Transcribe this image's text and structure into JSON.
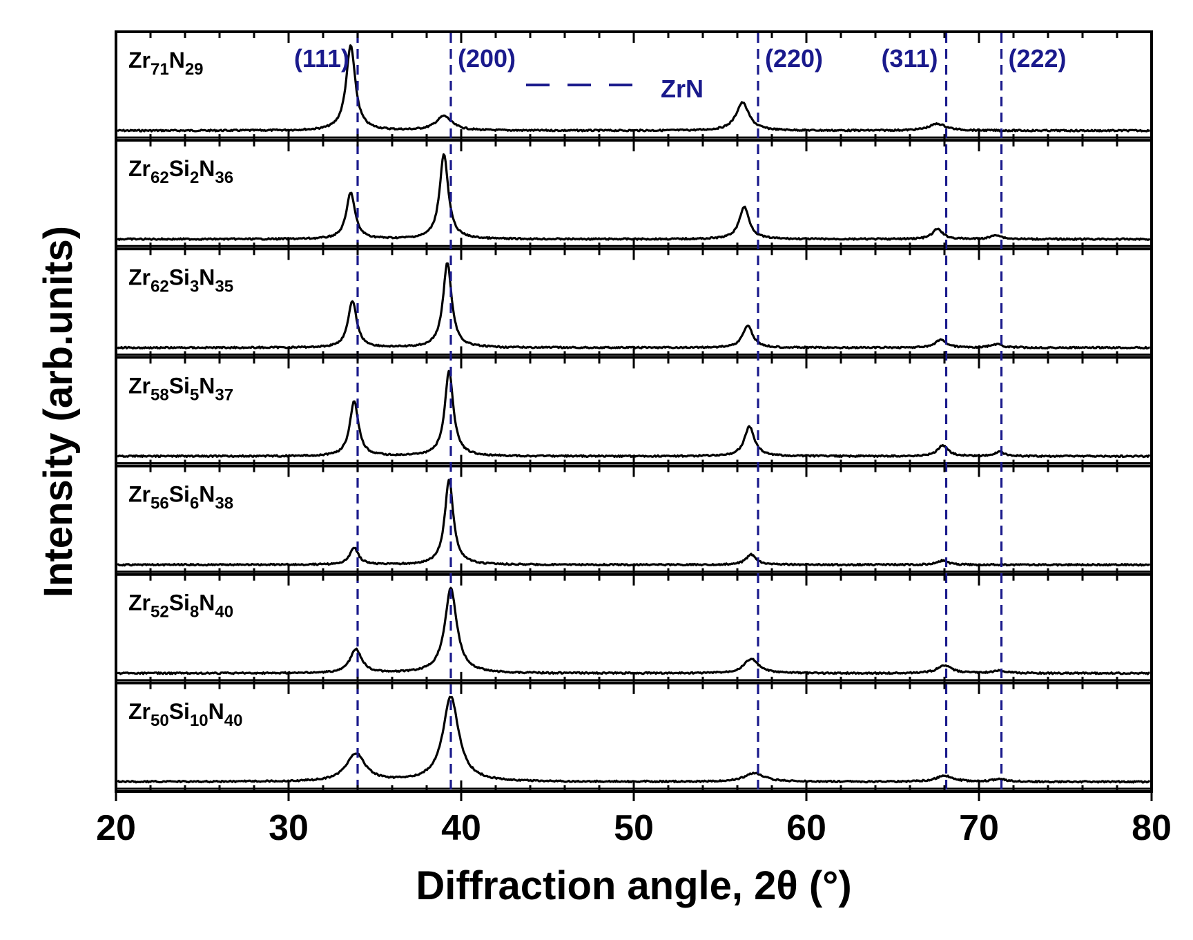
{
  "chart_data": {
    "type": "line",
    "title": "",
    "xlabel": "Diffraction angle, 2θ (°)",
    "ylabel": "Intensity (arb.units)",
    "xlim": [
      20,
      80
    ],
    "x_ticks": [
      20,
      30,
      40,
      50,
      60,
      70,
      80
    ],
    "x_minor_step": 2,
    "stacked": true,
    "reference": {
      "phase_label": "ZrN",
      "color": "#1a1a8c",
      "lines": [
        {
          "hkl": "(111)",
          "angle": 34.0
        },
        {
          "hkl": "(200)",
          "angle": 39.4
        },
        {
          "hkl": "(220)",
          "angle": 57.2
        },
        {
          "hkl": "(311)",
          "angle": 68.1
        },
        {
          "hkl": "(222)",
          "angle": 71.3
        }
      ]
    },
    "series": [
      {
        "name": "Zr71N29",
        "label_parts": {
          "els": [
            "Zr",
            "N"
          ],
          "subs": [
            "71",
            "29"
          ]
        },
        "peaks": [
          {
            "angle": 33.6,
            "height": 1.0,
            "width": 0.32
          },
          {
            "angle": 39.0,
            "height": 0.17,
            "width": 0.55
          },
          {
            "angle": 56.3,
            "height": 0.33,
            "width": 0.45
          },
          {
            "angle": 67.6,
            "height": 0.08,
            "width": 0.6
          }
        ]
      },
      {
        "name": "Zr62Si2N36",
        "label_parts": {
          "els": [
            "Zr",
            "Si",
            "N"
          ],
          "subs": [
            "62",
            "2",
            "36"
          ]
        },
        "peaks": [
          {
            "angle": 33.6,
            "height": 0.55,
            "width": 0.3
          },
          {
            "angle": 39.0,
            "height": 1.0,
            "width": 0.3
          },
          {
            "angle": 56.4,
            "height": 0.38,
            "width": 0.35
          },
          {
            "angle": 67.6,
            "height": 0.12,
            "width": 0.35
          },
          {
            "angle": 71.0,
            "height": 0.05,
            "width": 0.35
          }
        ]
      },
      {
        "name": "Zr62Si3N35",
        "label_parts": {
          "els": [
            "Zr",
            "Si",
            "N"
          ],
          "subs": [
            "62",
            "3",
            "35"
          ]
        },
        "peaks": [
          {
            "angle": 33.7,
            "height": 0.55,
            "width": 0.3
          },
          {
            "angle": 39.2,
            "height": 1.0,
            "width": 0.3
          },
          {
            "angle": 56.6,
            "height": 0.26,
            "width": 0.35
          },
          {
            "angle": 67.8,
            "height": 0.1,
            "width": 0.35
          },
          {
            "angle": 71.0,
            "height": 0.04,
            "width": 0.4
          }
        ]
      },
      {
        "name": "Zr58Si5N37",
        "label_parts": {
          "els": [
            "Zr",
            "Si",
            "N"
          ],
          "subs": [
            "58",
            "5",
            "37"
          ]
        },
        "peaks": [
          {
            "angle": 33.8,
            "height": 0.65,
            "width": 0.3
          },
          {
            "angle": 39.3,
            "height": 1.0,
            "width": 0.3
          },
          {
            "angle": 56.7,
            "height": 0.35,
            "width": 0.35
          },
          {
            "angle": 67.9,
            "height": 0.13,
            "width": 0.35
          },
          {
            "angle": 71.2,
            "height": 0.05,
            "width": 0.35
          }
        ]
      },
      {
        "name": "Zr56Si6N38",
        "label_parts": {
          "els": [
            "Zr",
            "Si",
            "N"
          ],
          "subs": [
            "56",
            "6",
            "38"
          ]
        },
        "peaks": [
          {
            "angle": 33.8,
            "height": 0.2,
            "width": 0.3
          },
          {
            "angle": 39.3,
            "height": 1.0,
            "width": 0.3
          },
          {
            "angle": 56.8,
            "height": 0.12,
            "width": 0.35
          },
          {
            "angle": 67.9,
            "height": 0.05,
            "width": 0.35
          }
        ]
      },
      {
        "name": "Zr52Si8N40",
        "label_parts": {
          "els": [
            "Zr",
            "Si",
            "N"
          ],
          "subs": [
            "52",
            "8",
            "40"
          ]
        },
        "peaks": [
          {
            "angle": 33.9,
            "height": 0.28,
            "width": 0.4
          },
          {
            "angle": 39.4,
            "height": 1.0,
            "width": 0.42
          },
          {
            "angle": 56.8,
            "height": 0.17,
            "width": 0.5
          },
          {
            "angle": 68.0,
            "height": 0.09,
            "width": 0.5
          },
          {
            "angle": 71.2,
            "height": 0.03,
            "width": 0.5
          }
        ]
      },
      {
        "name": "Zr50Si10N40",
        "label_parts": {
          "els": [
            "Zr",
            "Si",
            "N"
          ],
          "subs": [
            "50",
            "10",
            "40"
          ]
        },
        "peaks": [
          {
            "angle": 33.9,
            "height": 0.33,
            "width": 0.65
          },
          {
            "angle": 39.4,
            "height": 1.0,
            "width": 0.55
          },
          {
            "angle": 57.0,
            "height": 0.1,
            "width": 0.7
          },
          {
            "angle": 68.0,
            "height": 0.07,
            "width": 0.6
          },
          {
            "angle": 71.2,
            "height": 0.03,
            "width": 0.5
          }
        ]
      }
    ]
  }
}
